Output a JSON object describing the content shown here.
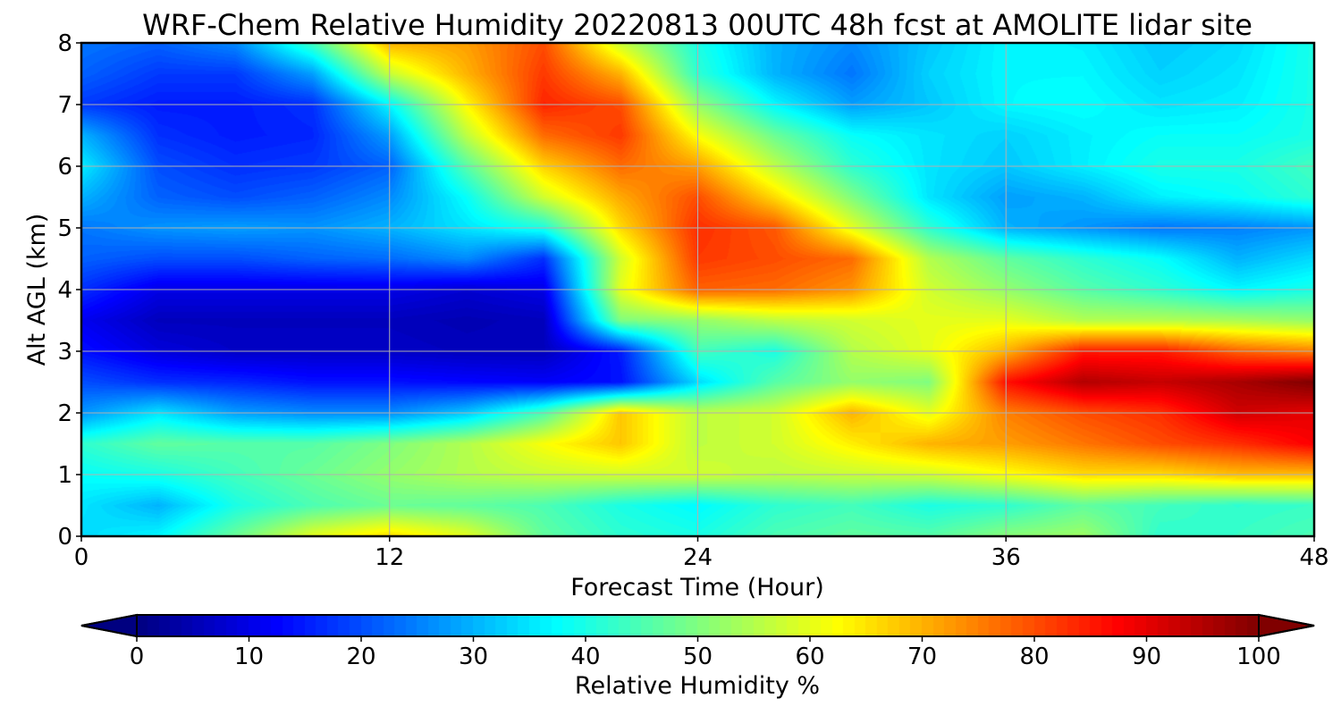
{
  "chart_data": {
    "type": "heatmap",
    "title": "WRF-Chem Relative Humidity 20220813 00UTC 48h fcst at AMOLITE lidar site",
    "xlabel": "Forecast Time (Hour)",
    "ylabel": "Alt AGL (km)",
    "xlim": [
      0,
      48
    ],
    "ylim": [
      0,
      8
    ],
    "xticks": [
      0,
      12,
      24,
      36,
      48
    ],
    "yticks": [
      0,
      1,
      2,
      3,
      4,
      5,
      6,
      7,
      8
    ],
    "grid": true,
    "colorbar": {
      "label": "Relative Humidity %",
      "min": 0,
      "max": 100,
      "ticks": [
        0,
        10,
        20,
        30,
        40,
        50,
        60,
        70,
        80,
        90,
        100
      ],
      "extend": "both",
      "colormap": "jet",
      "orientation": "horizontal",
      "placement": "bottom"
    },
    "x": [
      0,
      3,
      6,
      9,
      12,
      15,
      18,
      21,
      24,
      27,
      30,
      33,
      36,
      39,
      42,
      45,
      48
    ],
    "y": [
      0,
      0.5,
      1,
      1.5,
      2,
      2.5,
      3,
      3.5,
      4,
      4.5,
      5,
      5.5,
      6,
      6.5,
      7,
      7.5,
      8
    ],
    "z": [
      [
        34,
        37,
        48,
        60,
        66,
        60,
        47,
        42,
        40,
        45,
        47,
        46,
        51,
        53,
        42,
        43,
        45
      ],
      [
        35,
        30,
        40,
        45,
        48,
        47,
        45,
        40,
        37,
        42,
        44,
        40,
        42,
        47,
        44,
        42,
        43
      ],
      [
        38,
        40,
        44,
        48,
        52,
        55,
        57,
        58,
        58,
        56,
        57,
        58,
        62,
        66,
        66,
        69,
        69
      ],
      [
        42,
        47,
        46,
        46,
        50,
        55,
        62,
        68,
        56,
        58,
        64,
        70,
        72,
        76,
        80,
        83,
        88
      ],
      [
        27,
        35,
        28,
        26,
        26,
        32,
        45,
        68,
        56,
        58,
        70,
        60,
        75,
        80,
        83,
        92,
        90
      ],
      [
        20,
        17,
        16,
        14,
        14,
        13,
        12,
        14,
        34,
        46,
        52,
        50,
        86,
        95,
        93,
        96,
        100
      ],
      [
        14,
        9,
        7,
        7,
        7,
        6,
        6,
        15,
        44,
        40,
        55,
        60,
        70,
        85,
        85,
        78,
        75
      ],
      [
        11,
        6,
        6,
        6,
        6,
        5,
        6,
        50,
        52,
        56,
        58,
        60,
        60,
        55,
        55,
        54,
        52
      ],
      [
        17,
        10,
        10,
        10,
        10,
        8,
        10,
        60,
        78,
        77,
        73,
        58,
        52,
        46,
        42,
        37,
        40
      ],
      [
        22,
        20,
        20,
        22,
        23,
        26,
        17,
        58,
        82,
        80,
        77,
        55,
        47,
        42,
        38,
        30,
        34
      ],
      [
        24,
        27,
        28,
        27,
        30,
        35,
        40,
        66,
        83,
        79,
        60,
        42,
        30,
        27,
        24,
        25,
        27
      ],
      [
        30,
        22,
        20,
        22,
        26,
        38,
        58,
        71,
        80,
        66,
        50,
        35,
        28,
        30,
        36,
        38,
        42
      ],
      [
        36,
        20,
        17,
        18,
        22,
        46,
        67,
        77,
        72,
        56,
        42,
        35,
        32,
        36,
        40,
        40,
        44
      ],
      [
        30,
        17,
        15,
        16,
        28,
        56,
        77,
        82,
        62,
        48,
        38,
        35,
        33,
        36,
        38,
        38,
        40
      ],
      [
        18,
        15,
        15,
        17,
        37,
        63,
        84,
        80,
        52,
        37,
        28,
        32,
        37,
        38,
        35,
        36,
        40
      ],
      [
        22,
        18,
        18,
        28,
        57,
        70,
        82,
        70,
        42,
        30,
        24,
        33,
        37,
        37,
        33,
        35,
        40
      ],
      [
        24,
        22,
        26,
        44,
        70,
        72,
        80,
        57,
        40,
        30,
        26,
        32,
        37,
        36,
        32,
        34,
        40
      ]
    ]
  }
}
